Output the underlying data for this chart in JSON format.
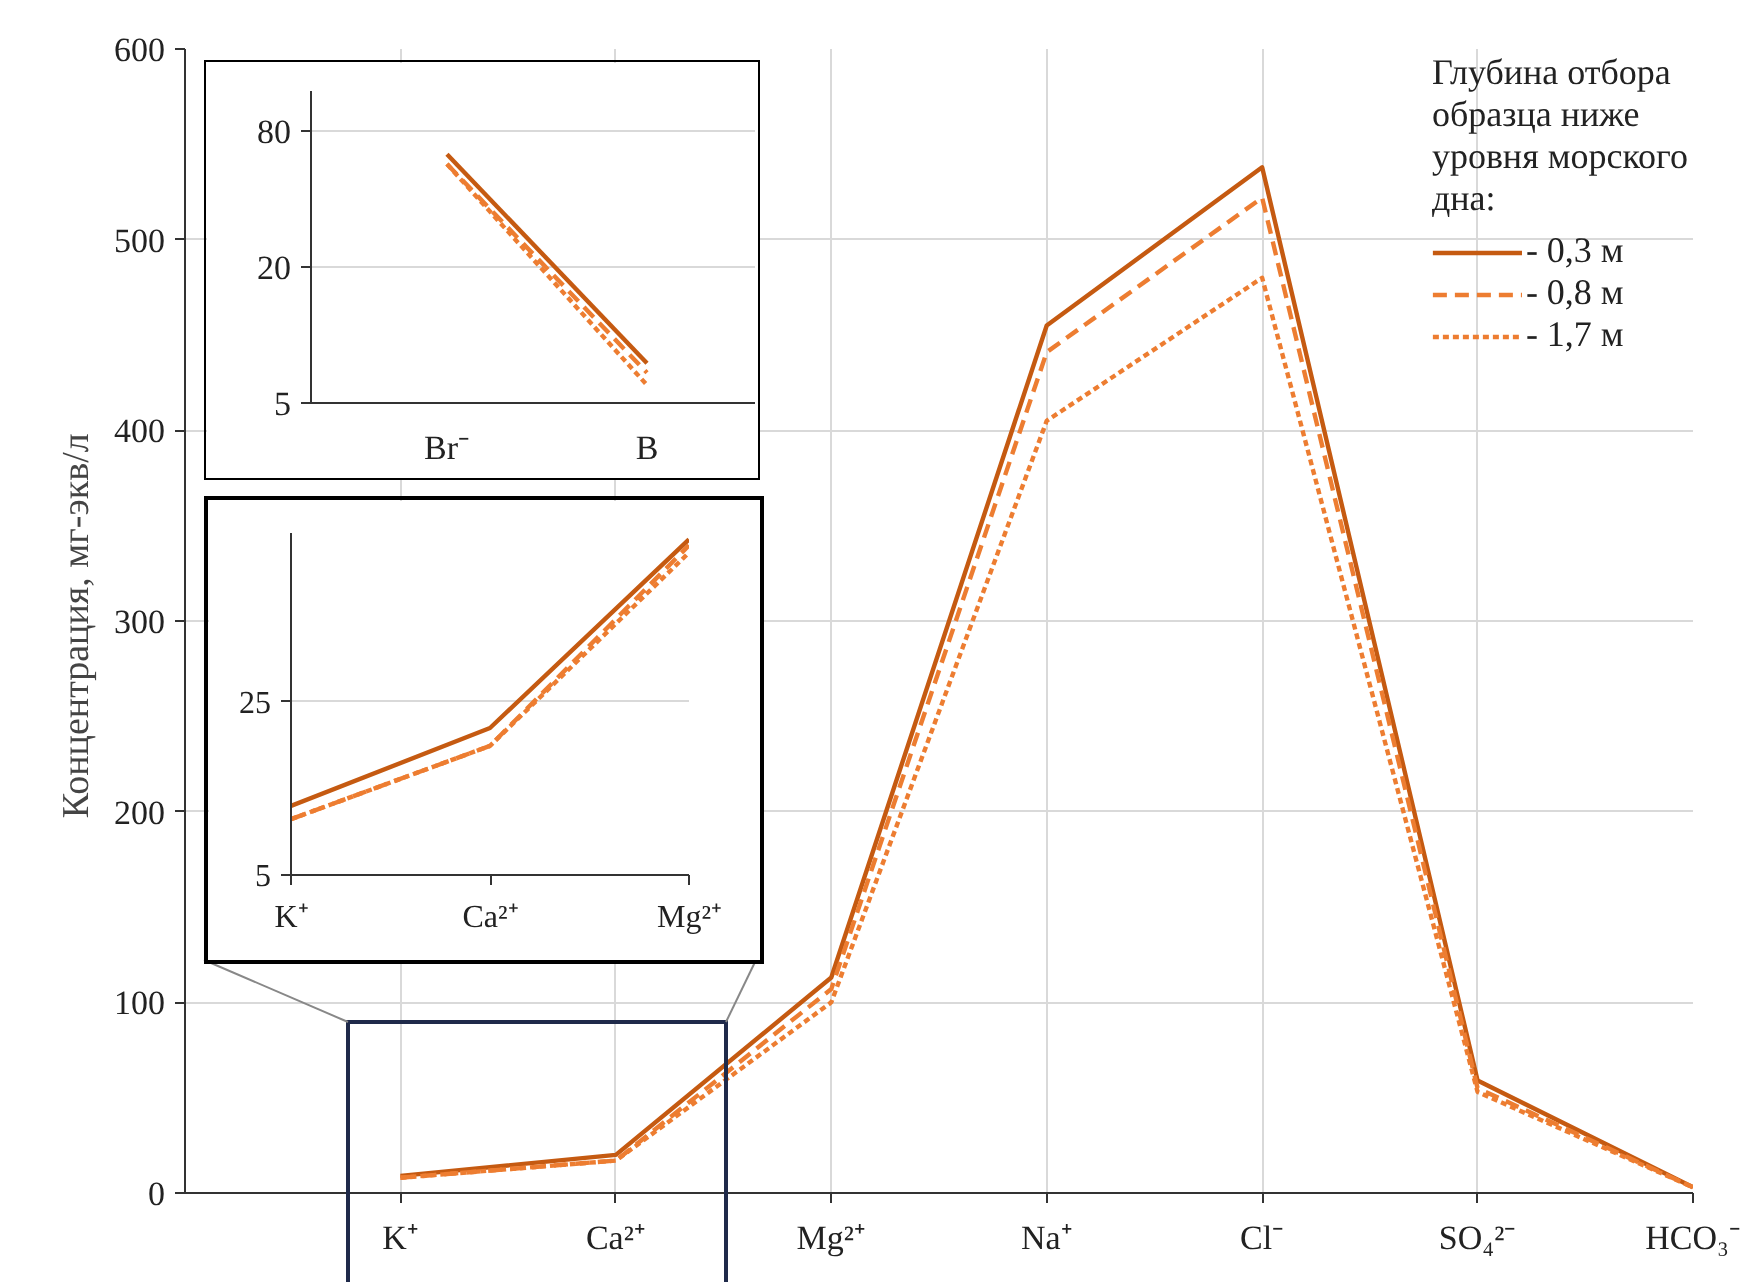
{
  "chart_data": [
    {
      "type": "line",
      "categories": [
        "K⁺",
        "Ca²⁺",
        "Mg²⁺",
        "Na⁺",
        "Cl⁻",
        "SO₄²⁻",
        "HCO₃⁻"
      ],
      "ylabel": "Концентрация,  мг-экв/л",
      "ylim": [
        0,
        600
      ],
      "yticks": [
        0,
        100,
        200,
        300,
        400,
        500,
        600
      ],
      "grid": true,
      "legend": "top right",
      "legend_title": "Глубина отбора образца ниже уровня морского дна:",
      "series": [
        {
          "name": "- 0,3 м",
          "color": "#c55a11",
          "line_style": "solid",
          "values": [
            9,
            20,
            113,
            455,
            538,
            59,
            3
          ]
        },
        {
          "name": "- 0,8 м",
          "color": "#ed7d31",
          "line_style": "dashed",
          "values": [
            8,
            17,
            107,
            441,
            522,
            55,
            3
          ]
        },
        {
          "name": "- 1,7 м",
          "color": "#ed7d31",
          "line_style": "dotted",
          "values": [
            8,
            17,
            100,
            405,
            480,
            53,
            3
          ]
        }
      ]
    },
    {
      "type": "line",
      "categories": [
        "Br⁻",
        "B"
      ],
      "log": true,
      "ylim": [
        5,
        120
      ],
      "yticks": [
        5,
        20,
        80
      ],
      "grid": "y",
      "series": [
        {
          "color": "#c55a11",
          "line_style": "solid",
          "values": [
            63,
            7.5
          ]
        },
        {
          "color": "#ed7d31",
          "line_style": "dashed",
          "values": [
            57,
            6.8
          ]
        },
        {
          "color": "#ed7d31",
          "line_style": "dotted",
          "values": [
            57,
            6
          ]
        }
      ]
    },
    {
      "type": "line",
      "categories": [
        "K⁺",
        "Ca²⁺",
        "Mg²⁺"
      ],
      "log": true,
      "ylim": [
        5,
        120
      ],
      "yticks": [
        5,
        25
      ],
      "grid": "y",
      "series": [
        {
          "color": "#c55a11",
          "line_style": "solid",
          "values": [
            9.5,
            19.6,
            113
          ]
        },
        {
          "color": "#ed7d31",
          "line_style": "dashed",
          "values": [
            8.4,
            16.6,
            107
          ]
        },
        {
          "color": "#ed7d31",
          "line_style": "dotted",
          "values": [
            8.4,
            16.6,
            100
          ]
        }
      ]
    }
  ]
}
